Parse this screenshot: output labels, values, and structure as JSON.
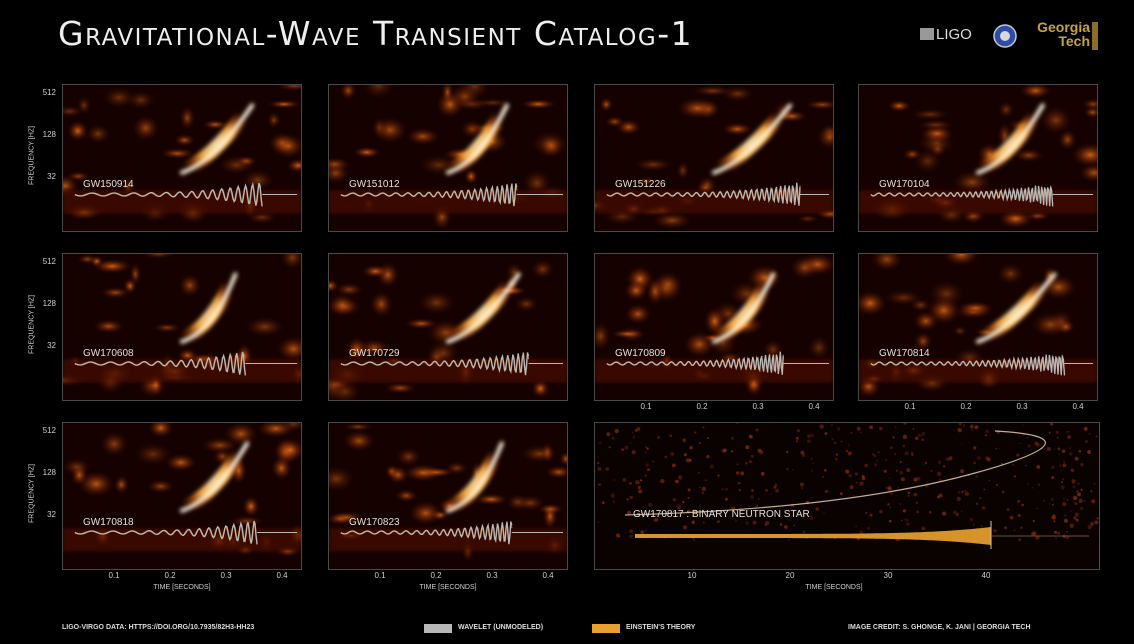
{
  "header": {
    "title": "Gravitational-Wave Transient Catalog-1",
    "logo_ligo": "LIGO",
    "logo_gt": [
      "Georgia",
      "Tech"
    ]
  },
  "axes": {
    "frequency_label": "FREQUENCY [HZ]",
    "frequency_ticks": [
      "512",
      "128",
      "32"
    ],
    "time_label": "TIME [SECONDS]",
    "time_ticks_short": [
      "0.1",
      "0.2",
      "0.3",
      "0.4"
    ],
    "time_ticks_long": [
      "10",
      "20",
      "30",
      "40"
    ]
  },
  "events": [
    {
      "id": "GW150914"
    },
    {
      "id": "GW151012"
    },
    {
      "id": "GW151226"
    },
    {
      "id": "GW170104"
    },
    {
      "id": "GW170608"
    },
    {
      "id": "GW170729"
    },
    {
      "id": "GW170809"
    },
    {
      "id": "GW170814"
    },
    {
      "id": "GW170818"
    },
    {
      "id": "GW170823"
    },
    {
      "id": "GW170817 : BINARY NEUTRON STAR"
    }
  ],
  "footer": {
    "data_source": "LIGO-VIRGO DATA: HTTPS://DOI.ORG/10.7935/82H3-HH23",
    "legend_wavelet": "WAVELET (UNMODELED)",
    "legend_theory": "EINSTEIN'S THEORY",
    "credit": "IMAGE CREDIT:  S. GHONGE, K. JANI | GEORGIA TECH"
  },
  "colors": {
    "wavelet": "#b8b8b8",
    "theory": "#e8a030",
    "background": "#000000"
  }
}
